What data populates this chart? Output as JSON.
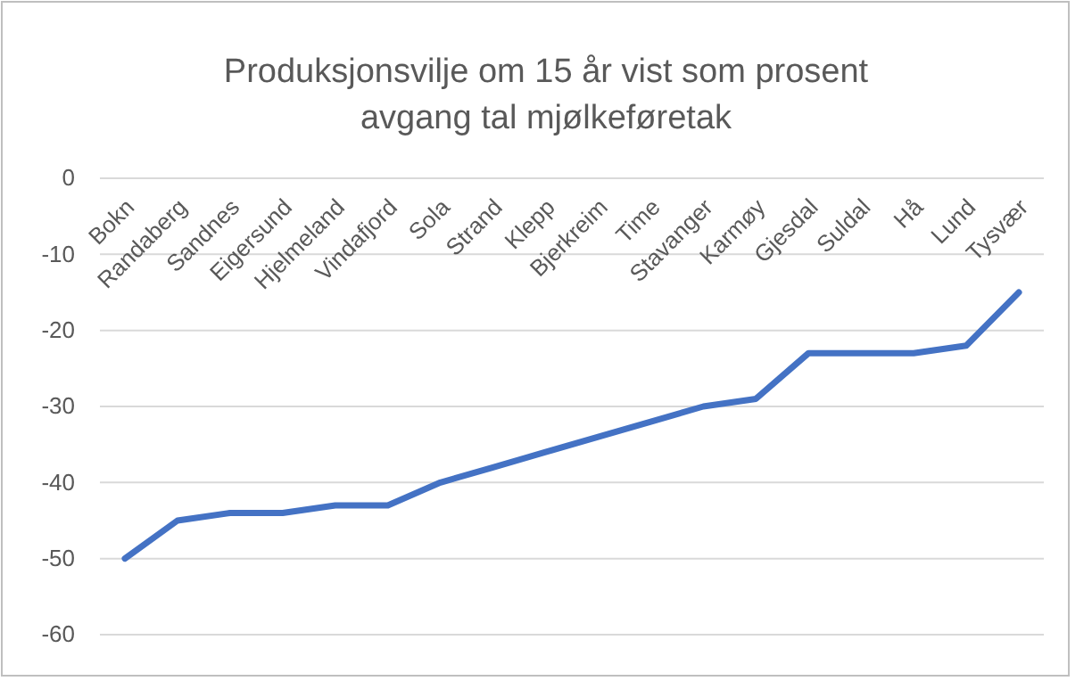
{
  "chart_data": {
    "type": "line",
    "title": "Produksjonsvilje om 15 år vist som prosent avgang tal mjølkeføretak",
    "categories": [
      "Bokn",
      "Randaberg",
      "Sandnes",
      "Eigersund",
      "Hjelmeland",
      "Vindafjord",
      "Sola",
      "Strand",
      "Klepp",
      "Bjerkreim",
      "Time",
      "Stavanger",
      "Karmøy",
      "Gjesdal",
      "Suldal",
      "Hå",
      "Lund",
      "Tysvær"
    ],
    "series": [
      {
        "color": "#4472c4",
        "values": [
          -50,
          -45,
          -44,
          -44,
          -43,
          -43,
          -40,
          -38,
          -36,
          -34,
          -32,
          -30,
          -29,
          -23,
          -23,
          -23,
          -22,
          -15
        ]
      }
    ],
    "ylim": [
      -60,
      0
    ],
    "yticks": [
      -60,
      -50,
      -40,
      -30,
      -20,
      -10,
      0
    ],
    "grid": "y",
    "marker": "none",
    "line_style": "solid"
  }
}
